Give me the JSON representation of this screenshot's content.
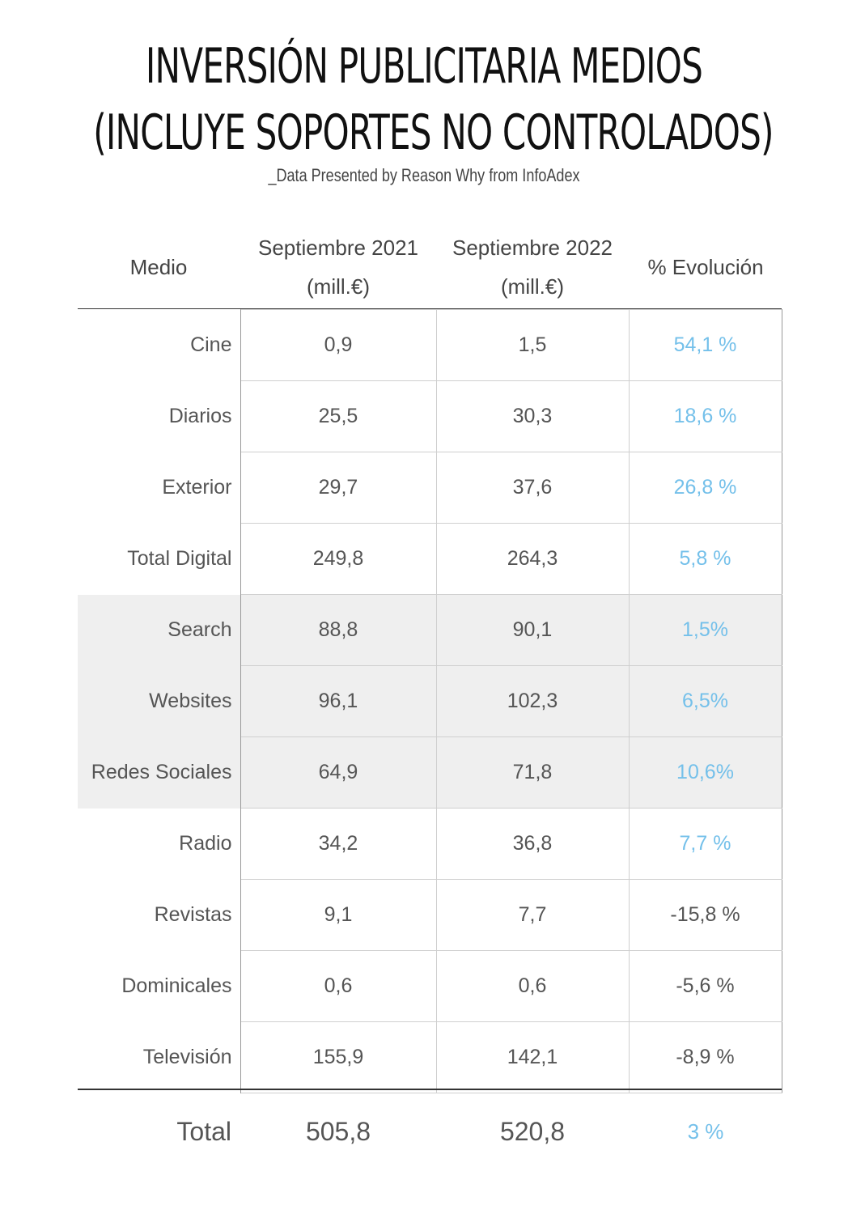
{
  "title_line1": "INVERSIÓN PUBLICITARIA MEDIOS",
  "title_line2": "(INCLUYE SOPORTES NO CONTROLADOS)",
  "subtitle": "_Data Presented by Reason Why from InfoAdex",
  "headers": {
    "medio": "Medio",
    "s21_line1": "Septiembre 2021",
    "s21_line2": "(mill.€)",
    "s22_line1": "Septiembre 2022",
    "s22_line2": "(mill.€)",
    "evo": "% Evolución"
  },
  "chart_data": {
    "type": "table",
    "title": "INVERSIÓN PUBLICITARIA MEDIOS (INCLUYE SOPORTES NO CONTROLADOS)",
    "columns": [
      "Medio",
      "Septiembre 2021 (mill.€)",
      "Septiembre 2022 (mill.€)",
      "% Evolución"
    ],
    "rows": [
      {
        "medio": "Cine",
        "s21": "0,9",
        "s22": "1,5",
        "evo": "54,1 %",
        "positive": true,
        "shaded": false
      },
      {
        "medio": "Diarios",
        "s21": "25,5",
        "s22": "30,3",
        "evo": "18,6 %",
        "positive": true,
        "shaded": false
      },
      {
        "medio": "Exterior",
        "s21": "29,7",
        "s22": "37,6",
        "evo": "26,8 %",
        "positive": true,
        "shaded": false
      },
      {
        "medio": "Total Digital",
        "s21": "249,8",
        "s22": "264,3",
        "evo": "5,8 %",
        "positive": true,
        "shaded": false
      },
      {
        "medio": "Search",
        "s21": "88,8",
        "s22": "90,1",
        "evo": "1,5%",
        "positive": true,
        "shaded": true
      },
      {
        "medio": "Websites",
        "s21": "96,1",
        "s22": "102,3",
        "evo": "6,5%",
        "positive": true,
        "shaded": true
      },
      {
        "medio": "Redes Sociales",
        "s21": "64,9",
        "s22": "71,8",
        "evo": "10,6%",
        "positive": true,
        "shaded": true
      },
      {
        "medio": "Radio",
        "s21": "34,2",
        "s22": "36,8",
        "evo": "7,7 %",
        "positive": true,
        "shaded": false
      },
      {
        "medio": "Revistas",
        "s21": "9,1",
        "s22": "7,7",
        "evo": "-15,8 %",
        "positive": false,
        "shaded": false
      },
      {
        "medio": "Dominicales",
        "s21": "0,6",
        "s22": "0,6",
        "evo": "-5,6 %",
        "positive": false,
        "shaded": false
      },
      {
        "medio": "Televisión",
        "s21": "155,9",
        "s22": "142,1",
        "evo": "-8,9 %",
        "positive": false,
        "shaded": false
      }
    ],
    "total": {
      "label": "Total",
      "s21": "505,8",
      "s22": "520,8",
      "evo": "3 %"
    }
  },
  "colors": {
    "positive": "#74c0ea",
    "text": "#555555",
    "shade": "#efefef"
  }
}
